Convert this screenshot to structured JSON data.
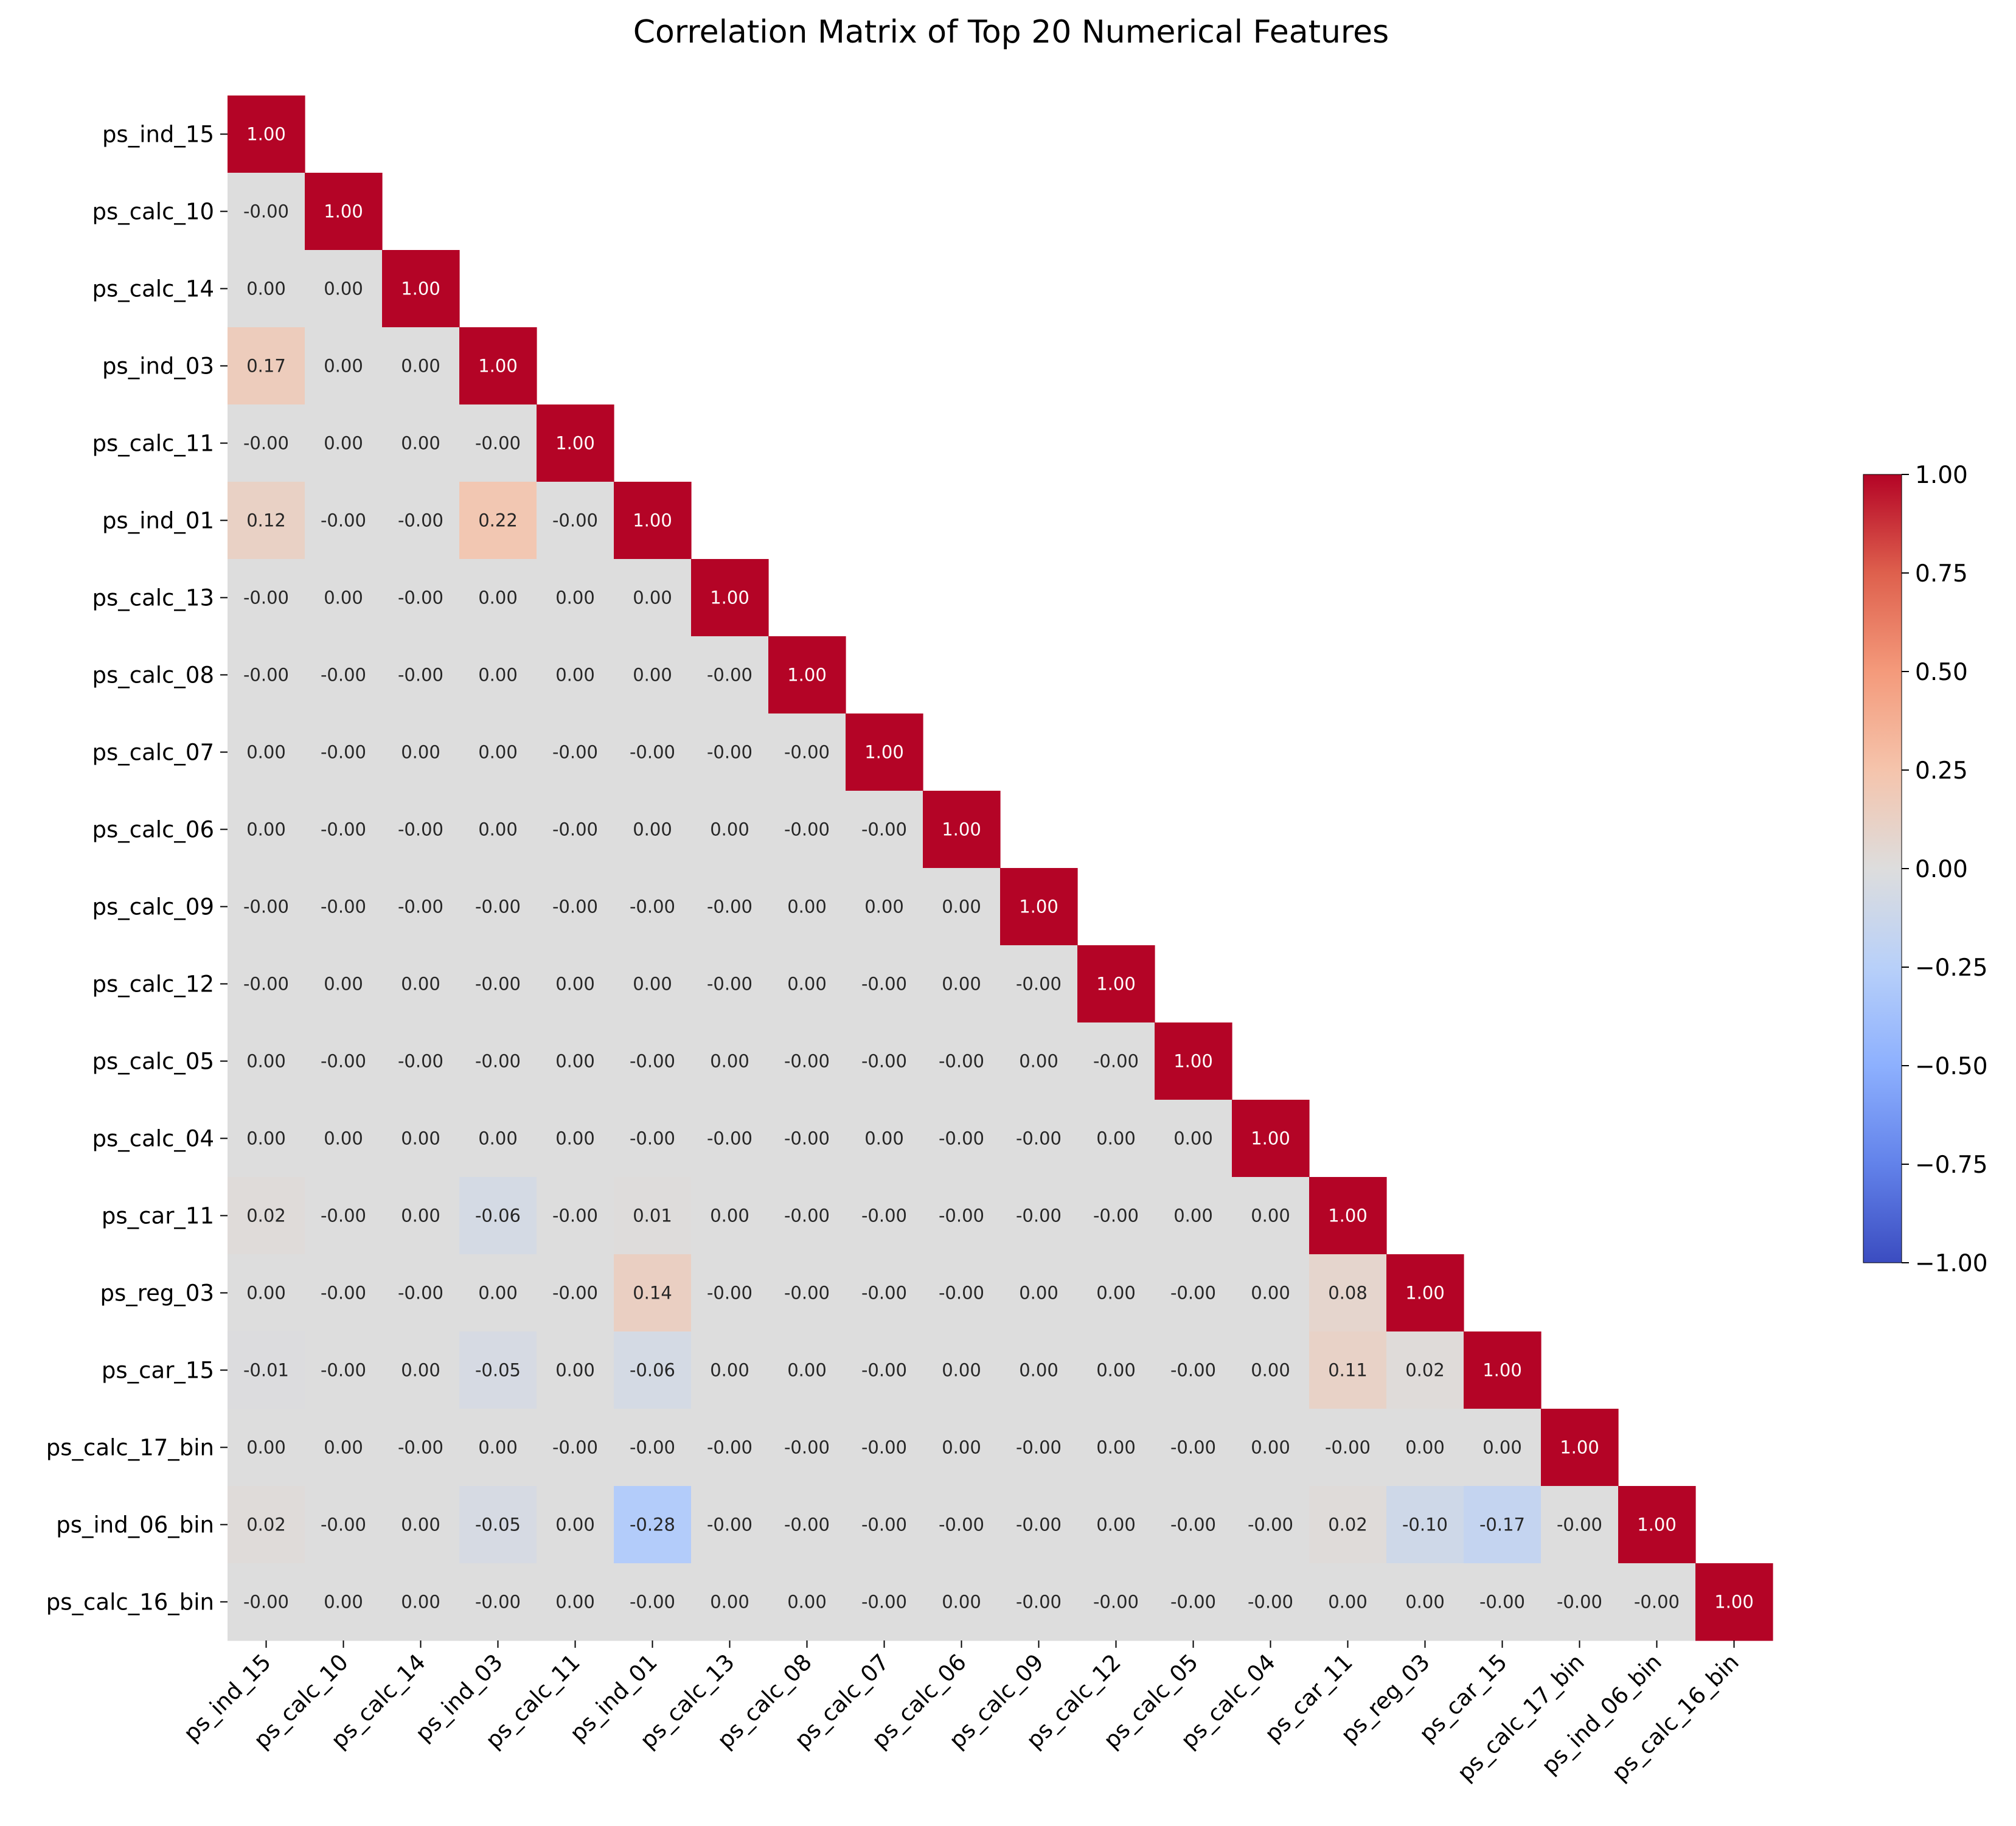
{
  "chart_data": {
    "type": "heatmap",
    "title": "Correlation Matrix of Top 20 Numerical Features",
    "xlabel": "",
    "ylabel": "",
    "colormap": "coolwarm",
    "value_range": [
      -1.0,
      1.0
    ],
    "mask": "upper-triangle",
    "value_format": "2 decimals",
    "features": [
      "ps_ind_15",
      "ps_calc_10",
      "ps_calc_14",
      "ps_ind_03",
      "ps_calc_11",
      "ps_ind_01",
      "ps_calc_13",
      "ps_calc_08",
      "ps_calc_07",
      "ps_calc_06",
      "ps_calc_09",
      "ps_calc_12",
      "ps_calc_05",
      "ps_calc_04",
      "ps_car_11",
      "ps_reg_03",
      "ps_car_15",
      "ps_calc_17_bin",
      "ps_ind_06_bin",
      "ps_calc_16_bin"
    ],
    "matrix_lower": [
      [
        "1.00"
      ],
      [
        "-0.00",
        "1.00"
      ],
      [
        "0.00",
        "0.00",
        "1.00"
      ],
      [
        "0.17",
        "0.00",
        "0.00",
        "1.00"
      ],
      [
        "-0.00",
        "0.00",
        "0.00",
        "-0.00",
        "1.00"
      ],
      [
        "0.12",
        "-0.00",
        "-0.00",
        "0.22",
        "-0.00",
        "1.00"
      ],
      [
        "-0.00",
        "0.00",
        "-0.00",
        "0.00",
        "0.00",
        "0.00",
        "1.00"
      ],
      [
        "-0.00",
        "-0.00",
        "-0.00",
        "0.00",
        "0.00",
        "0.00",
        "-0.00",
        "1.00"
      ],
      [
        "0.00",
        "-0.00",
        "0.00",
        "0.00",
        "-0.00",
        "-0.00",
        "-0.00",
        "-0.00",
        "1.00"
      ],
      [
        "0.00",
        "-0.00",
        "-0.00",
        "0.00",
        "-0.00",
        "0.00",
        "0.00",
        "-0.00",
        "-0.00",
        "1.00"
      ],
      [
        "-0.00",
        "-0.00",
        "-0.00",
        "-0.00",
        "-0.00",
        "-0.00",
        "-0.00",
        "0.00",
        "0.00",
        "0.00",
        "1.00"
      ],
      [
        "-0.00",
        "0.00",
        "0.00",
        "-0.00",
        "0.00",
        "0.00",
        "-0.00",
        "0.00",
        "-0.00",
        "0.00",
        "-0.00",
        "1.00"
      ],
      [
        "0.00",
        "-0.00",
        "-0.00",
        "-0.00",
        "0.00",
        "-0.00",
        "0.00",
        "-0.00",
        "-0.00",
        "-0.00",
        "0.00",
        "-0.00",
        "1.00"
      ],
      [
        "0.00",
        "0.00",
        "0.00",
        "0.00",
        "0.00",
        "-0.00",
        "-0.00",
        "-0.00",
        "0.00",
        "-0.00",
        "-0.00",
        "0.00",
        "0.00",
        "1.00"
      ],
      [
        "0.02",
        "-0.00",
        "0.00",
        "-0.06",
        "-0.00",
        "0.01",
        "0.00",
        "-0.00",
        "-0.00",
        "-0.00",
        "-0.00",
        "-0.00",
        "0.00",
        "0.00",
        "1.00"
      ],
      [
        "0.00",
        "-0.00",
        "-0.00",
        "0.00",
        "-0.00",
        "0.14",
        "-0.00",
        "-0.00",
        "-0.00",
        "-0.00",
        "0.00",
        "0.00",
        "-0.00",
        "0.00",
        "0.08",
        "1.00"
      ],
      [
        "-0.01",
        "-0.00",
        "0.00",
        "-0.05",
        "0.00",
        "-0.06",
        "0.00",
        "0.00",
        "-0.00",
        "0.00",
        "0.00",
        "0.00",
        "-0.00",
        "0.00",
        "0.11",
        "0.02",
        "1.00"
      ],
      [
        "0.00",
        "0.00",
        "-0.00",
        "0.00",
        "-0.00",
        "-0.00",
        "-0.00",
        "-0.00",
        "-0.00",
        "0.00",
        "-0.00",
        "0.00",
        "-0.00",
        "0.00",
        "-0.00",
        "0.00",
        "0.00",
        "1.00"
      ],
      [
        "0.02",
        "-0.00",
        "0.00",
        "-0.05",
        "0.00",
        "-0.28",
        "-0.00",
        "-0.00",
        "-0.00",
        "-0.00",
        "-0.00",
        "0.00",
        "-0.00",
        "-0.00",
        "0.02",
        "-0.10",
        "-0.17",
        "-0.00",
        "1.00"
      ],
      [
        "-0.00",
        "0.00",
        "0.00",
        "-0.00",
        "0.00",
        "-0.00",
        "0.00",
        "0.00",
        "-0.00",
        "0.00",
        "-0.00",
        "-0.00",
        "-0.00",
        "-0.00",
        "0.00",
        "0.00",
        "-0.00",
        "-0.00",
        "-0.00",
        "1.00"
      ]
    ],
    "colorbar": {
      "ticks": [
        "1.00",
        "0.75",
        "0.50",
        "0.25",
        "0.00",
        "−0.25",
        "−0.50",
        "−0.75",
        "−1.00"
      ],
      "tick_values": [
        1.0,
        0.75,
        0.5,
        0.25,
        0.0,
        -0.25,
        -0.5,
        -0.75,
        -1.0
      ]
    }
  }
}
